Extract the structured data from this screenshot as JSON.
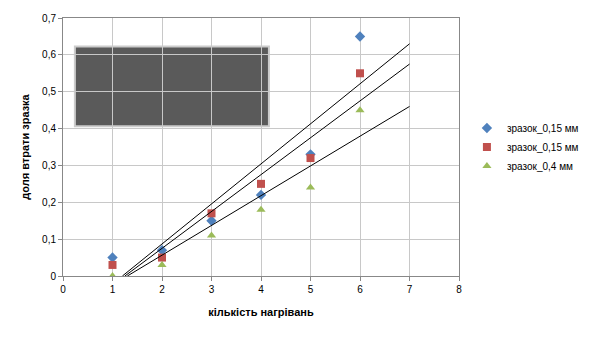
{
  "chart_data": {
    "type": "scatter",
    "x_label": "кількість нагрівань",
    "y_label": "доля втрати зразка",
    "x": [
      1,
      2,
      3,
      4,
      5,
      6
    ],
    "series": [
      {
        "name": "зразок_0,15 мм",
        "color": "#4f81bd",
        "marker": "diamond",
        "values": [
          0.05,
          0.07,
          0.15,
          0.22,
          0.33,
          0.65
        ]
      },
      {
        "name": "зразок_0,15 мм",
        "color": "#c0504d",
        "marker": "square",
        "values": [
          0.03,
          0.05,
          0.17,
          0.25,
          0.32,
          0.55
        ]
      },
      {
        "name": "зразок_0,4 мм",
        "color": "#9bbb59",
        "marker": "triangle-up",
        "values": [
          0,
          0.03,
          0.11,
          0.18,
          0.24,
          0.45
        ]
      },
      {
        "type": "line",
        "color": "#000000",
        "line_style": "solid",
        "x": [
          1.2,
          7
        ],
        "values": [
          0,
          0.63
        ]
      },
      {
        "type": "line",
        "color": "#000000",
        "line_style": "solid",
        "x": [
          1.25,
          7
        ],
        "values": [
          0,
          0.575
        ]
      },
      {
        "type": "line",
        "color": "#000000",
        "line_style": "solid",
        "x": [
          1.3,
          7
        ],
        "values": [
          0,
          0.46
        ]
      }
    ],
    "xlim": [
      0,
      8
    ],
    "xticks": [
      0,
      1,
      2,
      3,
      4,
      5,
      6,
      7,
      8
    ],
    "ylim": [
      0,
      0.7
    ],
    "yticks": [
      0,
      {
        "value": 0.1,
        "label": "0,1"
      },
      {
        "value": 0.2,
        "label": "0,2"
      },
      {
        "value": 0.3,
        "label": "0,3"
      },
      {
        "value": 0.4,
        "label": "0,4"
      },
      {
        "value": 0.5,
        "label": "0,5"
      },
      {
        "value": 0.6,
        "label": "0,6"
      },
      {
        "value": 0.7,
        "label": "0,7"
      }
    ],
    "grid": true,
    "legend": "right"
  }
}
